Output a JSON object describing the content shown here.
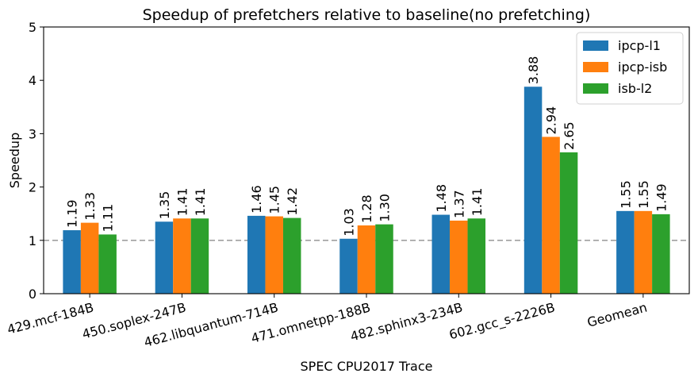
{
  "chart_data": {
    "type": "bar",
    "title": "Speedup of prefetchers relative to baseline(no prefetching)",
    "xlabel": "SPEC CPU2017 Trace",
    "ylabel": "Speedup",
    "ylim": [
      0,
      5
    ],
    "yticks": [
      0,
      1,
      2,
      3,
      4,
      5
    ],
    "reference_line": {
      "y": 1,
      "style": "dashed",
      "color": "#a0a0a0"
    },
    "categories": [
      "429.mcf-184B",
      "450.soplex-247B",
      "462.libquantum-714B",
      "471.omnetpp-188B",
      "482.sphinx3-234B",
      "602.gcc_s-2226B",
      "Geomean"
    ],
    "series": [
      {
        "name": "ipcp-l1",
        "color": "#1f77b4",
        "values": [
          1.19,
          1.35,
          1.46,
          1.03,
          1.48,
          3.88,
          1.55
        ],
        "labels": [
          "1.19",
          "1.35",
          "1.46",
          "1.03",
          "1.48",
          "3.88",
          "1.55"
        ]
      },
      {
        "name": "ipcp-isb",
        "color": "#ff7f0e",
        "values": [
          1.33,
          1.41,
          1.45,
          1.28,
          1.37,
          2.94,
          1.55
        ],
        "labels": [
          "1.33",
          "1.41",
          "1.45",
          "1.28",
          "1.37",
          "2.94",
          "1.55"
        ]
      },
      {
        "name": "isb-l2",
        "color": "#2ca02c",
        "values": [
          1.11,
          1.41,
          1.42,
          1.3,
          1.41,
          2.65,
          1.49
        ],
        "labels": [
          "1.11",
          "1.41",
          "1.42",
          "1.30",
          "1.41",
          "2.65",
          "1.49"
        ]
      }
    ],
    "legend_position": "top-right",
    "grid": false
  }
}
